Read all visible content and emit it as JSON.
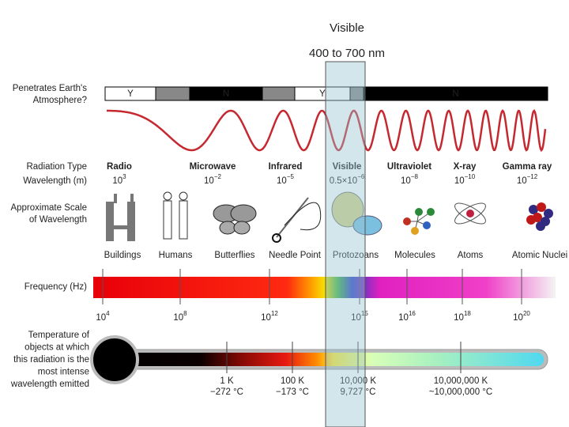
{
  "visible": {
    "title": "Visible",
    "range": "400 to 700 nm"
  },
  "atmosphere": {
    "label": [
      "Penetrates Earth's",
      "Atmosphere?"
    ],
    "segments": [
      "Y",
      "N",
      "Y",
      "N"
    ]
  },
  "row_labels": {
    "radiation_type": "Radiation Type",
    "wavelength": "Wavelength (m)",
    "scale": [
      "Approximate Scale",
      "of Wavelength"
    ],
    "frequency": "Frequency (Hz)",
    "temperature": [
      "Temperature of",
      "objects at which",
      "this radiation is the",
      "most intense",
      "wavelength emitted"
    ]
  },
  "radiation_types": [
    "Radio",
    "Microwave",
    "Infrared",
    "Visible",
    "Ultraviolet",
    "X-ray",
    "Gamma ray"
  ],
  "wavelengths": [
    {
      "base": "10",
      "exp": "3"
    },
    {
      "base": "10",
      "exp": "−2"
    },
    {
      "base": "10",
      "exp": "−5"
    },
    {
      "base": "0.5×10",
      "exp": "−6"
    },
    {
      "base": "10",
      "exp": "−8"
    },
    {
      "base": "10",
      "exp": "−10"
    },
    {
      "base": "10",
      "exp": "−12"
    }
  ],
  "scales": [
    "Buildings",
    "Humans",
    "Butterflies",
    "Needle Point",
    "Protozoans",
    "Molecules",
    "Atoms",
    "Atomic Nuclei"
  ],
  "frequencies": [
    {
      "base": "10",
      "exp": "4"
    },
    {
      "base": "10",
      "exp": "8"
    },
    {
      "base": "10",
      "exp": "12"
    },
    {
      "base": "10",
      "exp": "15"
    },
    {
      "base": "10",
      "exp": "16"
    },
    {
      "base": "10",
      "exp": "18"
    },
    {
      "base": "10",
      "exp": "20"
    }
  ],
  "temperatures": [
    {
      "kelvin": "1 K",
      "celsius": "−272 °C"
    },
    {
      "kelvin": "100 K",
      "celsius": "−173 °C"
    },
    {
      "kelvin": "10,000 K",
      "celsius": "9,727 °C"
    },
    {
      "kelvin": "10,000,000 K",
      "celsius": "~10,000,000 °C"
    }
  ]
}
